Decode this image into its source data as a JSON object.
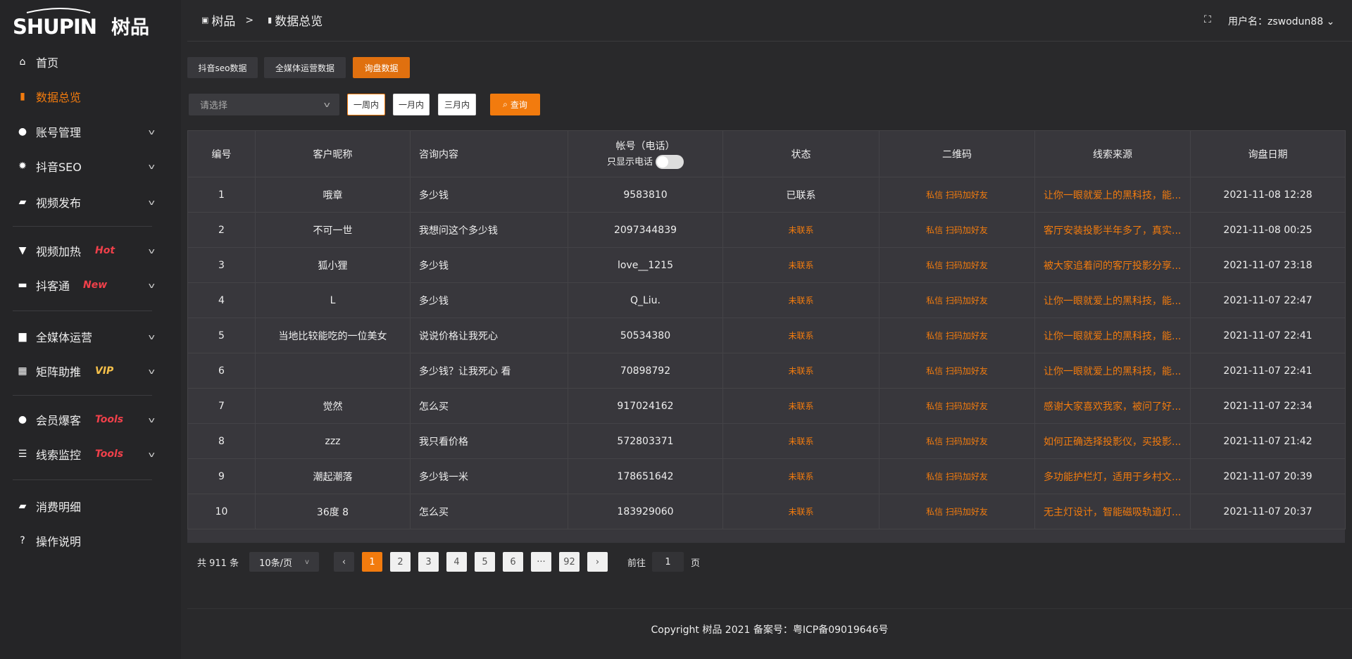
{
  "logo": {
    "text": "SHUPIN 树品"
  },
  "sidebar": {
    "items": [
      {
        "label": "首页",
        "icon": "home-icon",
        "glyph": "⌂"
      },
      {
        "label": "数据总览",
        "icon": "bar-chart-icon",
        "glyph": "▮",
        "active": true
      },
      {
        "label": "账号管理",
        "icon": "user-icon",
        "glyph": "●",
        "chev": true
      },
      {
        "label": "抖音SEO",
        "icon": "gear-icon",
        "glyph": "✹",
        "chev": true
      },
      {
        "label": "视频发布",
        "icon": "camera-icon",
        "glyph": "▰",
        "chev": true
      },
      {
        "label": "视频加热",
        "icon": "flame-icon",
        "glyph": "▼",
        "chev": true,
        "tag": "Hot",
        "tag_color": "#f0404a"
      },
      {
        "label": "抖客通",
        "icon": "chat-icon",
        "glyph": "▬",
        "chev": true,
        "tag": "New",
        "tag_color": "#f0404a"
      },
      {
        "label": "全媒体运营",
        "icon": "monitor-icon",
        "glyph": "▆",
        "chev": true
      },
      {
        "label": "矩阵助推",
        "icon": "grid-icon",
        "glyph": "▦",
        "chev": true,
        "tag": "VIP",
        "tag_color": "#f5c04a"
      },
      {
        "label": "会员爆客",
        "icon": "member-icon",
        "glyph": "●",
        "chev": true,
        "tag": "Tools",
        "tag_color": "#f0404a"
      },
      {
        "label": "线索监控",
        "icon": "sliders-icon",
        "glyph": "☰",
        "chev": true,
        "tag": "Tools",
        "tag_color": "#f0404a"
      },
      {
        "label": "消费明细",
        "icon": "wallet-icon",
        "glyph": "▰"
      },
      {
        "label": "操作说明",
        "icon": "help-icon",
        "glyph": "?"
      }
    ]
  },
  "header": {
    "crumb_root": "树品",
    "crumb_sep": ">",
    "crumb_current": "数据总览",
    "user_label": "用户名：zswodun88",
    "user_chev": "⌄"
  },
  "tabs": [
    {
      "label": "抖音seo数据"
    },
    {
      "label": "全媒体运营数据"
    },
    {
      "label": "询盘数据",
      "active": true
    }
  ],
  "filter": {
    "select_placeholder": "请选择",
    "ranges": [
      "一周内",
      "一月内",
      "三月内"
    ],
    "selected_range": "一周内",
    "query_label": "查询"
  },
  "table": {
    "headers": [
      "编号",
      "客户昵称",
      "咨询内容",
      "帐号（电话）",
      "状态",
      "二维码",
      "线索来源",
      "询盘日期"
    ],
    "phone_toggle_label": "只显示电话",
    "phone_toggle_on": false,
    "rows": [
      [
        "1",
        "哦章",
        "多少钱",
        "9583810",
        "已联系",
        "私信 扫码加好友",
        "让你一眼就爱上的黑科技，能...",
        "2021-11-08 12:28"
      ],
      [
        "2",
        "不可一世",
        "我想问这个多少钱",
        "2097344839",
        "未联系",
        "私信 扫码加好友",
        "客厅安装投影半年多了，真实...",
        "2021-11-08 00:25"
      ],
      [
        "3",
        "狐小狸",
        "多少钱",
        "love__1215",
        "未联系",
        "私信 扫码加好友",
        "被大家追着问的客厅投影分享...",
        "2021-11-07 23:18"
      ],
      [
        "4",
        "L",
        "多少钱",
        "Q_Liu.",
        "未联系",
        "私信 扫码加好友",
        "让你一眼就爱上的黑科技，能...",
        "2021-11-07 22:47"
      ],
      [
        "5",
        "当地比较能吃的一位美女",
        "说说价格让我死心",
        "50534380",
        "未联系",
        "私信 扫码加好友",
        "让你一眼就爱上的黑科技，能...",
        "2021-11-07 22:41"
      ],
      [
        "6",
        "",
        "多少钱？让我死心 看",
        "70898792",
        "未联系",
        "私信 扫码加好友",
        "让你一眼就爱上的黑科技，能...",
        "2021-11-07 22:41"
      ],
      [
        "7",
        "觉然",
        "怎么买",
        "917024162",
        "未联系",
        "私信 扫码加好友",
        "感谢大家喜欢我家，被问了好...",
        "2021-11-07 22:34"
      ],
      [
        "8",
        "zzz",
        "我只看价格",
        "572803371",
        "未联系",
        "私信 扫码加好友",
        "如何正确选择投影仪，买投影...",
        "2021-11-07 21:42"
      ],
      [
        "9",
        "潮起潮落",
        "多少钱一米",
        "178651642",
        "未联系",
        "私信 扫码加好友",
        "多功能护栏灯，适用于乡村文...",
        "2021-11-07 20:39"
      ],
      [
        "10",
        "36度 8",
        "怎么买",
        "183929060",
        "未联系",
        "私信 扫码加好友",
        "无主灯设计，智能磁吸轨道灯...",
        "2021-11-07 20:37"
      ]
    ]
  },
  "pagination": {
    "total": "共 911 条",
    "page_size": "10条/页",
    "pages": [
      "1",
      "2",
      "3",
      "4",
      "5",
      "6",
      "···",
      "92"
    ],
    "current": "1",
    "prev": "‹",
    "next": "›",
    "goto_label": "前往",
    "goto_value": "1",
    "goto_suffix": "页"
  },
  "footer": {
    "copyright": "Copyright 树品 2021 备案号：粤ICP备09019646号"
  },
  "colors": {
    "accent": "#f27b0e",
    "sidebar_bg": "#252527",
    "main_bg": "#29292b",
    "table_bg": "#38373c"
  }
}
